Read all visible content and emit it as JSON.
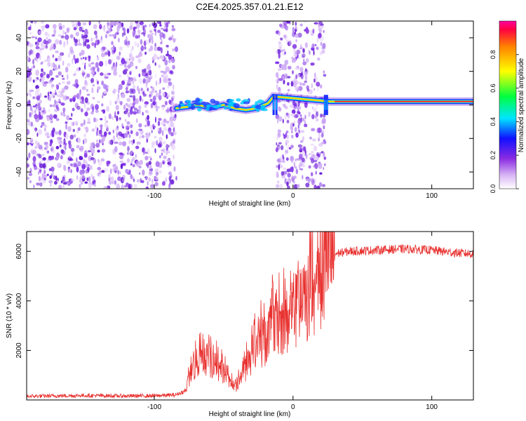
{
  "title": "C2E4.2025.357.01.21.E12",
  "chart_data": [
    {
      "type": "heatmap",
      "xlabel": "Height of straight line (km)",
      "ylabel": "Frequency (Hz)",
      "xlim": [
        -192,
        130
      ],
      "ylim": [
        -50,
        50
      ],
      "xticks": [
        -100,
        0,
        100
      ],
      "yticks": [
        -40,
        -20,
        0,
        20,
        40
      ],
      "noise_regions_x": [
        [
          -192,
          -84
        ],
        [
          -12,
          23
        ]
      ],
      "ridge": [
        {
          "x": -84,
          "y": -2
        },
        {
          "x": -75,
          "y": -1
        },
        {
          "x": -68,
          "y": 0
        },
        {
          "x": -60,
          "y": -2
        },
        {
          "x": -50,
          "y": 0
        },
        {
          "x": -42,
          "y": -2
        },
        {
          "x": -34,
          "y": -3
        },
        {
          "x": -26,
          "y": -2
        },
        {
          "x": -18,
          "y": 1
        },
        {
          "x": -14,
          "y": 5
        },
        {
          "x": 27,
          "y": 2
        },
        {
          "x": 60,
          "y": 2
        },
        {
          "x": 90,
          "y": 2
        },
        {
          "x": 130,
          "y": 2
        }
      ],
      "colorbar": {
        "label": "Normalized spectral amplitude",
        "min": 0.0,
        "max": 1.0,
        "ticks": [
          "0.0",
          "0.2",
          "0.4",
          "0.6",
          "0.8"
        ]
      }
    },
    {
      "type": "line",
      "xlabel": "Height of straight line (km)",
      "ylabel": "SNR (10 * v/v)",
      "xlim": [
        -192,
        130
      ],
      "ylim": [
        0,
        6800
      ],
      "xticks": [
        -100,
        0,
        100
      ],
      "yticks": [
        2000,
        4000,
        6000
      ],
      "color": "#e8312f",
      "series": [
        {
          "name": "SNR",
          "points": [
            [
              -192,
              150
            ],
            [
              -150,
              180
            ],
            [
              -120,
              160
            ],
            [
              -100,
              170
            ],
            [
              -85,
              200
            ],
            [
              -78,
              350
            ],
            [
              -72,
              1300
            ],
            [
              -68,
              1500
            ],
            [
              -62,
              1600
            ],
            [
              -56,
              1400
            ],
            [
              -50,
              1100
            ],
            [
              -46,
              700
            ],
            [
              -42,
              500
            ],
            [
              -38,
              800
            ],
            [
              -32,
              1600
            ],
            [
              -26,
              2100
            ],
            [
              -20,
              2400
            ],
            [
              -15,
              3000
            ],
            [
              -10,
              3200
            ],
            [
              -5,
              3100
            ],
            [
              0,
              3500
            ],
            [
              5,
              3700
            ],
            [
              10,
              4000
            ],
            [
              15,
              4300
            ],
            [
              20,
              5000
            ],
            [
              25,
              5600
            ],
            [
              30,
              5900
            ],
            [
              40,
              6000
            ],
            [
              60,
              6050
            ],
            [
              80,
              6100
            ],
            [
              100,
              6050
            ],
            [
              115,
              5950
            ],
            [
              130,
              5900
            ]
          ]
        }
      ]
    }
  ]
}
